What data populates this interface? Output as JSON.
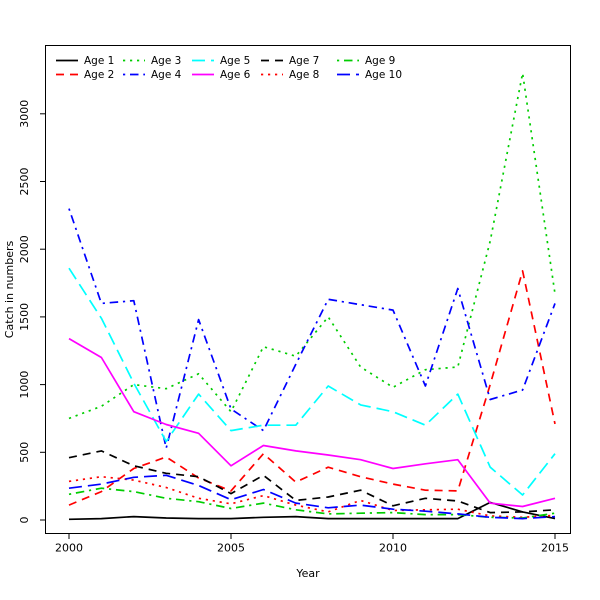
{
  "chart_data": {
    "type": "line",
    "title": "",
    "xlabel": "Year",
    "ylabel": "Catch in numbers",
    "x": [
      2000,
      2001,
      2002,
      2003,
      2004,
      2005,
      2006,
      2007,
      2008,
      2009,
      2010,
      2011,
      2012,
      2013,
      2014,
      2015
    ],
    "xticks": [
      "2000",
      "2005",
      "2010",
      "2015"
    ],
    "xtick_values": [
      2000,
      2005,
      2010,
      2015
    ],
    "yticks": [
      "0",
      "500",
      "1000",
      "1500",
      "2000",
      "2500",
      "3000"
    ],
    "ytick_values": [
      0,
      500,
      1000,
      1500,
      2000,
      2500,
      3000
    ],
    "xlim": [
      2000,
      2015
    ],
    "ylim": [
      0,
      3300
    ],
    "grid": false,
    "legend_position": "top-inside",
    "legend_columns": 5,
    "colors": {
      "black": "#000000",
      "red": "#FF0000",
      "green": "#00CD00",
      "blue": "#0000FF",
      "cyan": "#00FFFF",
      "magenta": "#FF00FF"
    },
    "series": [
      {
        "name": "Age 1",
        "color": "#000000",
        "linetype": "solid",
        "values": [
          5,
          10,
          25,
          15,
          10,
          10,
          20,
          25,
          10,
          10,
          10,
          10,
          10,
          130,
          60,
          10
        ]
      },
      {
        "name": "Age 2",
        "color": "#FF0000",
        "linetype": "dashed",
        "values": [
          110,
          210,
          380,
          465,
          310,
          215,
          490,
          280,
          390,
          320,
          265,
          220,
          215,
          1000,
          1840,
          710
        ]
      },
      {
        "name": "Age 3",
        "color": "#00CD00",
        "linetype": "dotted",
        "values": [
          750,
          840,
          1000,
          970,
          1080,
          800,
          1280,
          1210,
          1500,
          1130,
          980,
          1110,
          1130,
          2060,
          3300,
          1670
        ]
      },
      {
        "name": "Age 4",
        "color": "#0000FF",
        "linetype": "dotdash",
        "values": [
          2300,
          1600,
          1620,
          530,
          1480,
          820,
          660,
          1150,
          1630,
          1590,
          1550,
          990,
          1710,
          890,
          960,
          1600
        ]
      },
      {
        "name": "Age 5",
        "color": "#00FFFF",
        "linetype": "longdash",
        "values": [
          1860,
          1490,
          1010,
          580,
          930,
          660,
          700,
          700,
          990,
          850,
          800,
          700,
          930,
          390,
          185,
          490
        ]
      },
      {
        "name": "Age 6",
        "color": "#FF00FF",
        "linetype": "solid",
        "values": [
          1340,
          1200,
          800,
          705,
          640,
          400,
          550,
          510,
          480,
          445,
          380,
          415,
          445,
          125,
          100,
          160
        ]
      },
      {
        "name": "Age 7",
        "color": "#000000",
        "linetype": "dashed",
        "values": [
          460,
          510,
          400,
          345,
          320,
          195,
          330,
          145,
          170,
          220,
          105,
          160,
          140,
          55,
          60,
          75
        ]
      },
      {
        "name": "Age 8",
        "color": "#FF0000",
        "linetype": "dotted",
        "values": [
          285,
          320,
          295,
          240,
          160,
          120,
          180,
          110,
          60,
          145,
          70,
          75,
          80,
          30,
          20,
          35
        ]
      },
      {
        "name": "Age 9",
        "color": "#00CD00",
        "linetype": "dotdash",
        "values": [
          190,
          235,
          210,
          160,
          135,
          85,
          125,
          75,
          45,
          50,
          55,
          40,
          40,
          20,
          15,
          50
        ]
      },
      {
        "name": "Age 10",
        "color": "#0000FF",
        "linetype": "longdash",
        "values": [
          235,
          265,
          315,
          330,
          255,
          150,
          225,
          125,
          90,
          110,
          80,
          65,
          45,
          20,
          10,
          25
        ]
      }
    ]
  }
}
